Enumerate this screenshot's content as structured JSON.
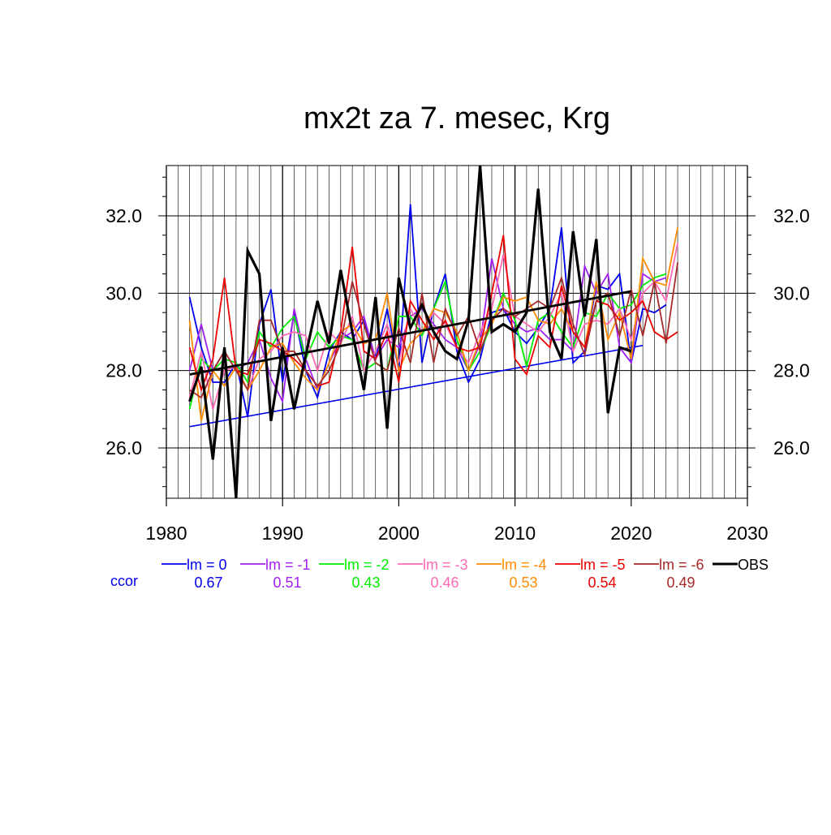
{
  "chart_data": {
    "type": "line",
    "title": "mx2t za 7. mesec, Krg",
    "xlim": [
      1980,
      2030
    ],
    "ylim": [
      24.7,
      33.3
    ],
    "x_ticks": [
      1980,
      1990,
      2000,
      2010,
      2020,
      2030
    ],
    "y_ticks": [
      26.0,
      28.0,
      30.0,
      32.0
    ],
    "x_tick_labels": [
      "1980",
      "1990",
      "2000",
      "2010",
      "2020",
      "2030"
    ],
    "y_tick_labels": [
      "26.0",
      "28.0",
      "30.0",
      "32.0"
    ],
    "grid": true,
    "legend_position": "bottom",
    "ccor_label": "ccor",
    "series": [
      {
        "name": "lm = 0",
        "color": "#0000ee",
        "ccor": "0.67",
        "x_start": 1982,
        "values": [
          29.9,
          28.6,
          27.7,
          27.7,
          28.2,
          26.8,
          29.2,
          30.1,
          27.7,
          29.5,
          28.0,
          27.3,
          28.5,
          29.0,
          28.8,
          29.3,
          28.3,
          29.6,
          28.0,
          32.3,
          28.2,
          29.6,
          30.5,
          28.5,
          27.7,
          28.3,
          29.5,
          29.6,
          29.0,
          28.7,
          29.1,
          29.6,
          31.7,
          28.2,
          28.5,
          30.2,
          30.1,
          30.5,
          28.2,
          29.6,
          29.5,
          29.7
        ],
        "trend": [
          1982,
          26.55,
          2021,
          28.65
        ]
      },
      {
        "name": "lm = -1",
        "color": "#a020f0",
        "ccor": "0.51",
        "x_start": 1982,
        "values": [
          28.0,
          29.2,
          28.0,
          28.5,
          28.0,
          28.2,
          28.8,
          27.8,
          27.2,
          29.6,
          28.3,
          27.5,
          28.2,
          28.8,
          29.0,
          29.4,
          28.3,
          28.8,
          28.6,
          29.4,
          29.6,
          29.2,
          28.8,
          28.6,
          28.0,
          28.7,
          30.9,
          29.6,
          29.2,
          29.0,
          29.1,
          28.8,
          28.8,
          28.5,
          30.7,
          30.0,
          30.5,
          28.6,
          28.2,
          30.5,
          30.3,
          30.4
        ]
      },
      {
        "name": "lm = -2",
        "color": "#00ee00",
        "ccor": "0.43",
        "x_start": 1982,
        "values": [
          27.0,
          28.3,
          28.0,
          28.3,
          28.2,
          27.7,
          29.0,
          28.6,
          29.1,
          29.4,
          28.3,
          29.0,
          28.6,
          28.9,
          28.8,
          28.0,
          28.2,
          28.0,
          29.4,
          29.4,
          28.9,
          29.6,
          30.3,
          28.8,
          28.0,
          28.5,
          29.2,
          30.0,
          29.3,
          28.1,
          29.3,
          29.5,
          29.0,
          28.6,
          29.5,
          29.4,
          30.0,
          29.6,
          29.7,
          30.2,
          30.4,
          30.5
        ]
      },
      {
        "name": "lm = -3",
        "color": "#ff69b4",
        "ccor": "0.46",
        "x_start": 1982,
        "values": [
          27.3,
          28.5,
          27.0,
          28.0,
          28.1,
          27.5,
          28.3,
          28.5,
          28.9,
          29.0,
          28.9,
          28.0,
          29.0,
          28.7,
          29.4,
          28.0,
          28.5,
          29.2,
          28.2,
          29.6,
          29.0,
          29.5,
          29.2,
          28.6,
          28.2,
          29.0,
          29.6,
          31.0,
          29.4,
          29.2,
          29.0,
          29.4,
          30.0,
          28.5,
          29.2,
          29.3,
          29.2,
          29.6,
          28.8,
          30.0,
          30.3,
          29.8,
          31.3
        ]
      },
      {
        "name": "lm = -4",
        "color": "#ff8c00",
        "ccor": "0.53",
        "x_start": 1982,
        "values": [
          29.3,
          26.7,
          28.0,
          27.6,
          28.1,
          27.5,
          28.0,
          28.6,
          28.7,
          28.2,
          27.8,
          27.5,
          28.2,
          29.0,
          29.2,
          28.7,
          28.8,
          30.0,
          28.0,
          28.7,
          29.0,
          29.6,
          29.5,
          29.0,
          28.0,
          28.8,
          29.2,
          29.9,
          29.8,
          29.9,
          29.3,
          29.2,
          29.6,
          29.0,
          28.6,
          30.3,
          28.8,
          29.5,
          28.3,
          30.9,
          30.3,
          30.2,
          31.7
        ]
      },
      {
        "name": "lm = -5",
        "color": "#ee0000",
        "ccor": "0.54",
        "x_start": 1982,
        "values": [
          28.6,
          27.5,
          28.3,
          30.4,
          28.0,
          27.9,
          28.8,
          28.7,
          28.5,
          28.3,
          28.0,
          27.6,
          27.7,
          29.0,
          31.2,
          28.5,
          28.3,
          29.0,
          27.7,
          29.8,
          29.3,
          28.8,
          29.3,
          28.6,
          28.5,
          28.6,
          30.0,
          31.5,
          28.3,
          27.9,
          28.9,
          28.6,
          30.2,
          29.0,
          28.6,
          29.8,
          29.7,
          29.3,
          29.5,
          29.8,
          29.0,
          28.8,
          29.0
        ]
      },
      {
        "name": "lm = -6",
        "color": "#a52a2a",
        "ccor": "0.49",
        "x_start": 1982,
        "values": [
          27.5,
          27.3,
          28.0,
          28.5,
          28.0,
          27.5,
          29.3,
          29.3,
          28.5,
          28.5,
          28.0,
          27.6,
          28.0,
          28.7,
          30.3,
          29.2,
          28.2,
          28.0,
          29.1,
          28.2,
          30.0,
          28.2,
          29.6,
          28.9,
          29.4,
          28.5,
          29.3,
          29.6,
          29.4,
          29.6,
          29.8,
          29.6,
          30.4,
          29.2,
          28.4,
          29.8,
          30.0,
          28.9,
          30.1,
          28.9,
          30.3,
          28.7,
          30.8
        ]
      },
      {
        "name": "OBS",
        "color": "#000000",
        "ccor": "",
        "x_start": 1982,
        "values": [
          27.2,
          28.1,
          25.7,
          28.6,
          24.7,
          31.1,
          30.5,
          26.7,
          28.6,
          27.0,
          28.4,
          29.8,
          28.7,
          30.6,
          29.0,
          27.5,
          29.9,
          26.5,
          30.4,
          29.1,
          29.7,
          29.0,
          28.5,
          28.3,
          29.3,
          33.3,
          29.0,
          29.2,
          29.0,
          29.5,
          32.7,
          29.0,
          28.3,
          31.6,
          29.4,
          31.4,
          26.9,
          28.6,
          28.5
        ],
        "trend": [
          1982,
          27.9,
          2020,
          30.05
        ]
      }
    ]
  }
}
